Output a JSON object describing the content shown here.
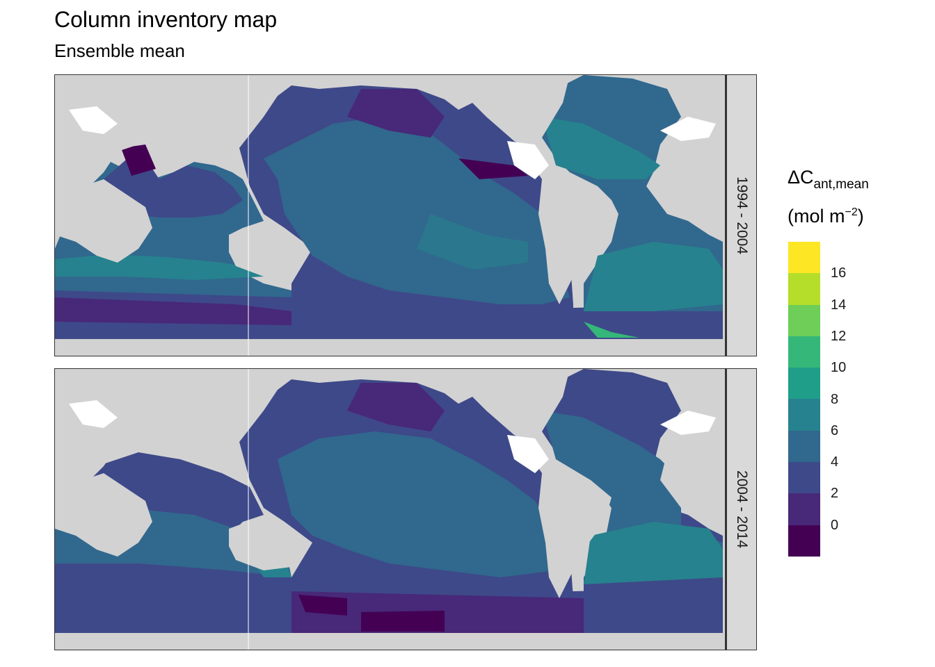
{
  "title": "Column inventory map",
  "subtitle": "Ensemble mean",
  "facets": [
    "1994 - 2004",
    "2004 - 2014"
  ],
  "legend": {
    "title_main": "ΔC",
    "title_sub": "ant,mean",
    "unit_prefix": "(mol m",
    "unit_exp": "−2",
    "unit_suffix": ")",
    "tick_labels": [
      "16",
      "14",
      "12",
      "10",
      "8",
      "6",
      "4",
      "2",
      "0"
    ],
    "bin_colors": [
      "#fde725",
      "#b5de2b",
      "#6ece58",
      "#35b779",
      "#1f9e89",
      "#26828e",
      "#31688e",
      "#3e4989",
      "#482878",
      "#440154"
    ]
  },
  "colors": {
    "land": "#d2d2d2",
    "no_data": "#ffffff",
    "strip": "#d9d9d9"
  }
}
